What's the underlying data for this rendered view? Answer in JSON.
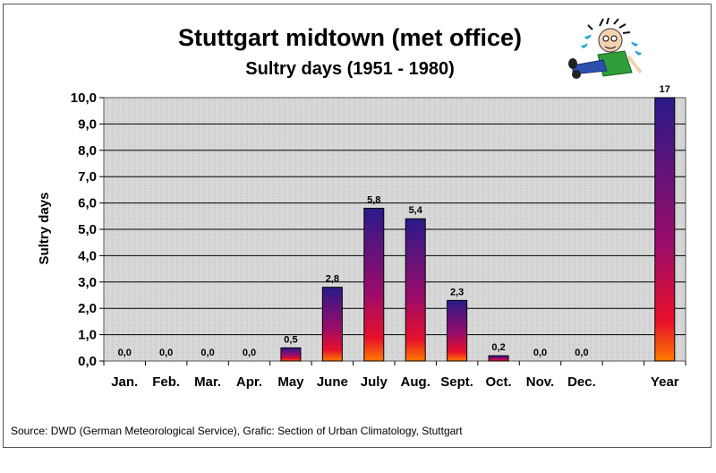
{
  "chart_data": {
    "type": "bar",
    "title": "Stuttgart midtown (met office)",
    "subtitle": "Sultry days (1951 - 1980)",
    "ylabel": "Sultry days",
    "xlabel": "",
    "categories": [
      "Jan.",
      "Feb.",
      "Mar.",
      "Apr.",
      "May",
      "June",
      "July",
      "Aug.",
      "Sept.",
      "Oct.",
      "Nov.",
      "Dec.",
      "",
      "Year"
    ],
    "values": [
      0.0,
      0.0,
      0.0,
      0.0,
      0.5,
      2.8,
      5.8,
      5.4,
      2.3,
      0.2,
      0.0,
      0.0,
      null,
      17
    ],
    "data_labels": [
      "0,0",
      "0,0",
      "0,0",
      "0,0",
      "0,5",
      "2,8",
      "5,8",
      "5,4",
      "2,3",
      "0,2",
      "0,0",
      "0,0",
      "",
      "17"
    ],
    "ylim": [
      0,
      10
    ],
    "yticks": [
      "0,0",
      "1,0",
      "2,0",
      "3,0",
      "4,0",
      "5,0",
      "6,0",
      "7,0",
      "8,0",
      "9,0",
      "10,0"
    ],
    "grid": true,
    "legend": "none",
    "colors": {
      "bar_top": "#2a1a8a",
      "bar_mid": "#9a0c6a",
      "bar_low": "#e8102a",
      "bar_bottom": "#ff7a00",
      "plot_bg": "#d9d9d9",
      "grid": "#000000"
    },
    "source": "Source: DWD (German Meteorological Service), Grafic: Section of Urban Climatology, Stuttgart"
  },
  "decoration": {
    "icon": "sweating-person-icon"
  }
}
